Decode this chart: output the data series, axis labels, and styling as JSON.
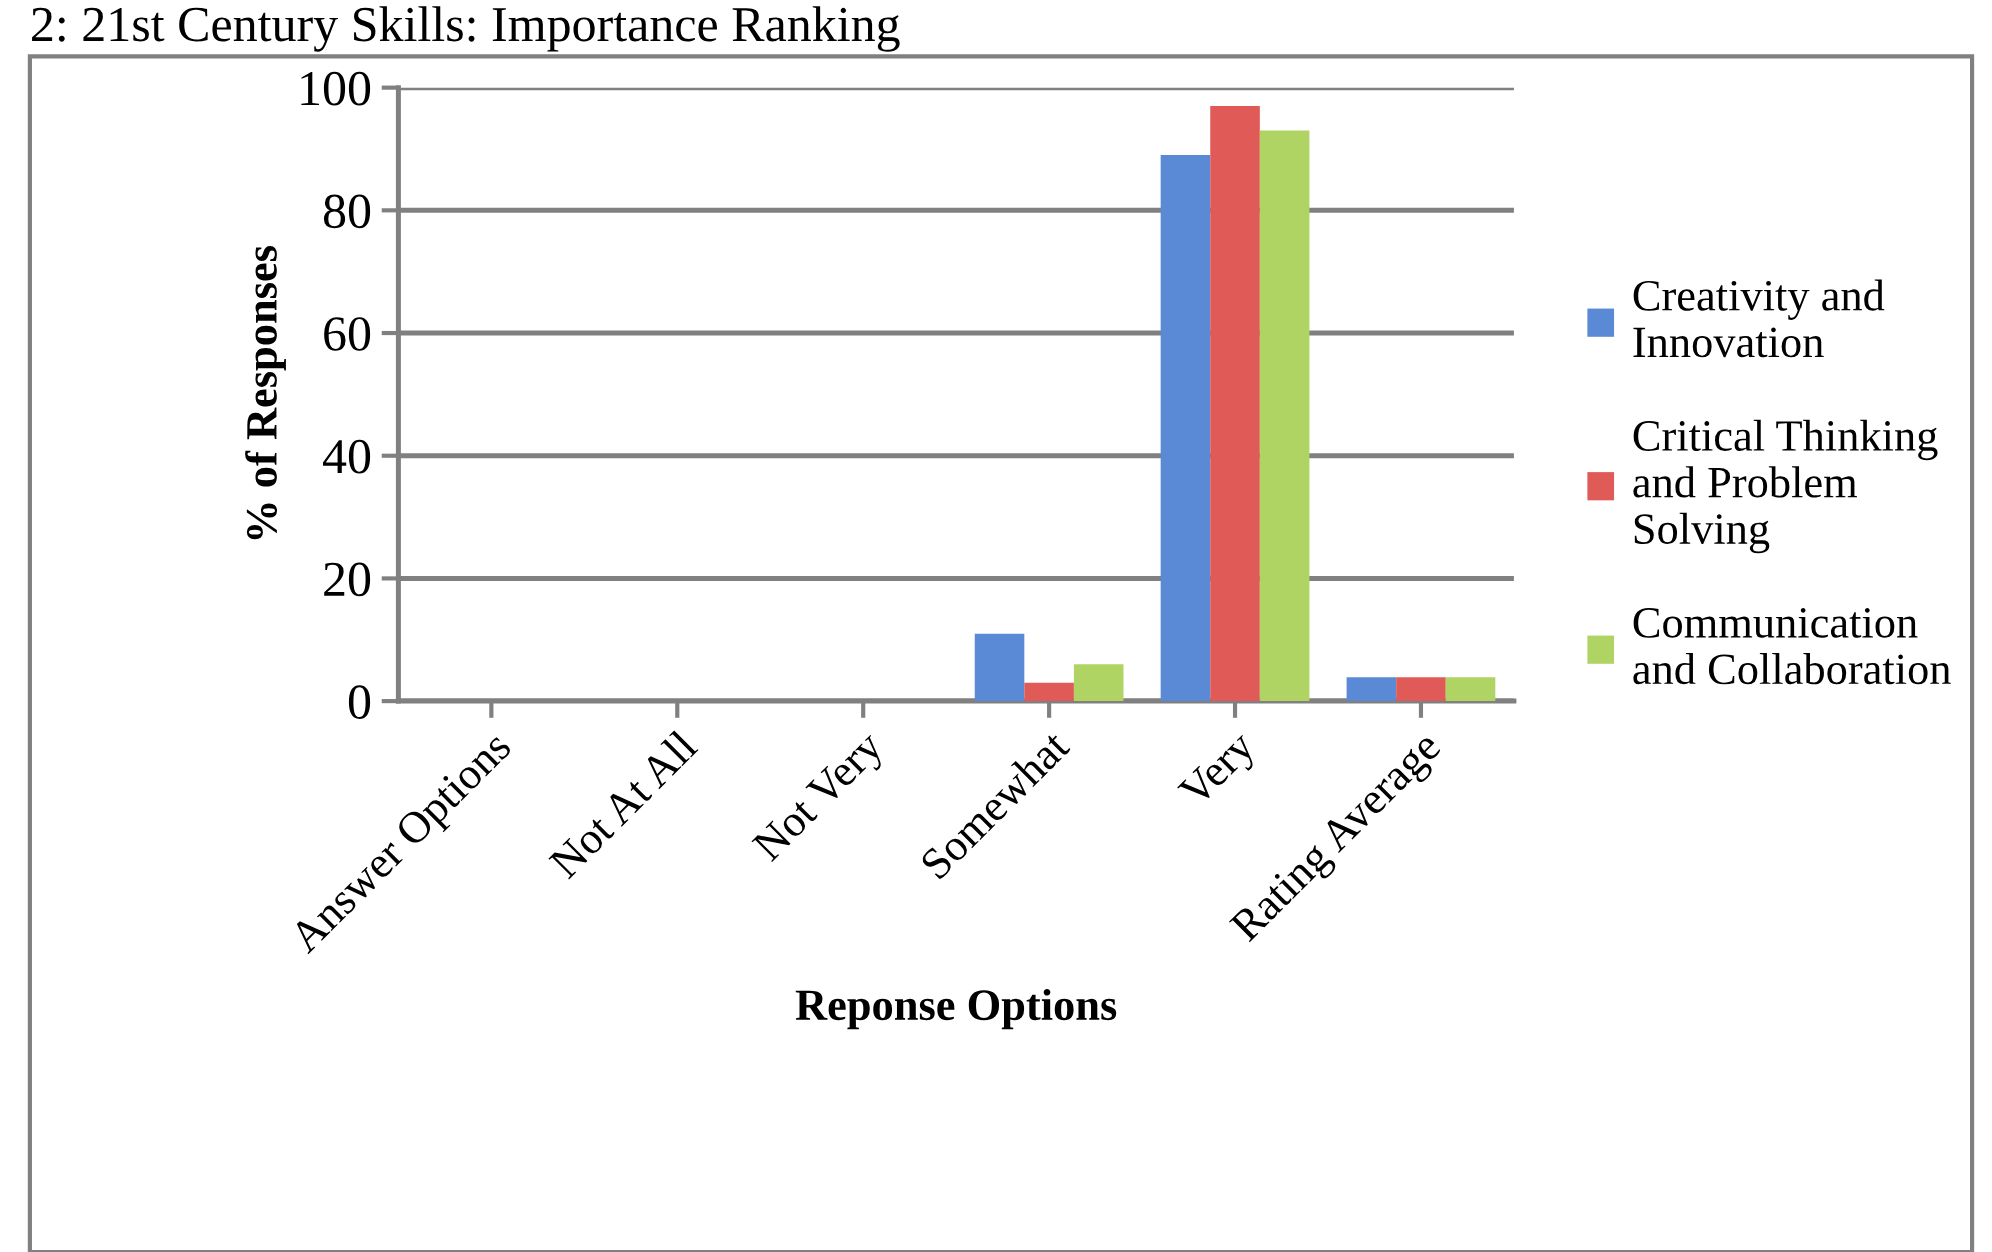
{
  "chart_data": {
    "type": "bar",
    "title": "2: 21st Century Skills: Importance Ranking",
    "xlabel": "Reponse Options",
    "ylabel": "% of Responses",
    "categories": [
      "Answer Options",
      "Not At All",
      "Not Very",
      "Somewhat",
      "Very",
      "Rating Average"
    ],
    "series": [
      {
        "name": "Creativity and Innovation",
        "color": "#5a8ad6",
        "values": [
          0,
          0,
          0,
          11,
          89,
          3.9
        ]
      },
      {
        "name": "Critical Thinking and Problem Solving",
        "color": "#e05a57",
        "values": [
          0,
          0,
          0,
          3,
          97,
          3.9
        ]
      },
      {
        "name": "Communication and Collaboration",
        "color": "#afd464",
        "values": [
          0,
          0,
          0,
          6,
          93,
          3.9
        ]
      }
    ],
    "ylim": [
      0,
      100
    ],
    "yticks": [
      0,
      20,
      40,
      60,
      80,
      100
    ],
    "grid": "y",
    "legend": "right"
  }
}
